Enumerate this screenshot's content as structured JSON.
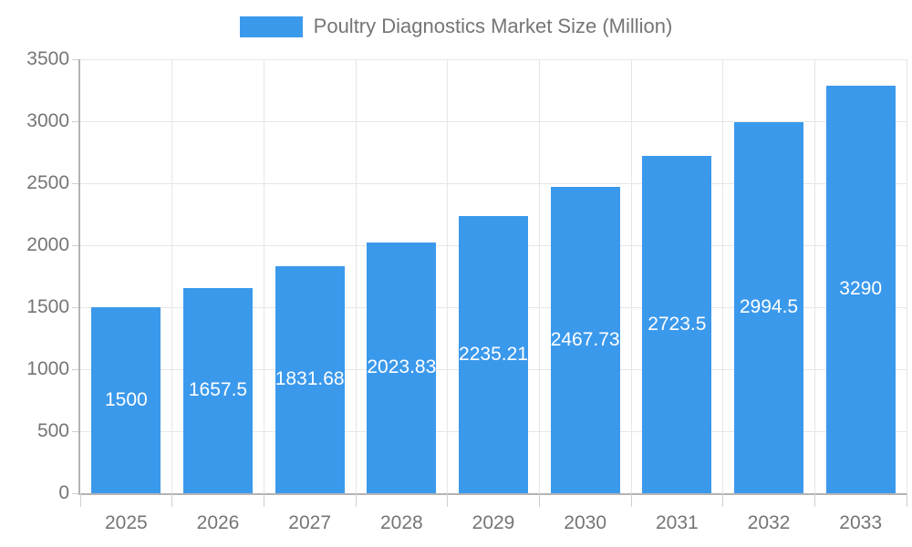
{
  "legend": {
    "items": [
      {
        "label": "Poultry Diagnostics Market Size (Million)",
        "color": "#3B99EC"
      }
    ]
  },
  "chart_data": {
    "type": "bar",
    "title": "Poultry Diagnostics Market Size (Million)",
    "categories": [
      "2025",
      "2026",
      "2027",
      "2028",
      "2029",
      "2030",
      "2031",
      "2032",
      "2033"
    ],
    "series": [
      {
        "name": "Poultry Diagnostics Market Size (Million)",
        "values": [
          1500,
          1657.5,
          1831.68,
          2023.83,
          2235.21,
          2467.73,
          2723.5,
          2994.5,
          3290
        ]
      }
    ],
    "bar_labels": [
      "1500",
      "1657.5",
      "1831.68",
      "2023.83",
      "2235.21",
      "2467.73",
      "2723.5",
      "2994.5",
      "3290"
    ],
    "xlabel": "",
    "ylabel": "",
    "ylim": [
      0,
      3500
    ],
    "yticks": [
      0,
      500,
      1000,
      1500,
      2000,
      2500,
      3000,
      3500
    ],
    "grid": true,
    "legend_position": "top",
    "colors": {
      "bar": "#3B99EC",
      "bar_label": "#FFFFFF",
      "axis_text": "#757575",
      "grid_line": "#E6E6E6",
      "axis_line": "#B3B3B3",
      "tick_mark": "#CFCFCF",
      "background": "#FFFFFF"
    }
  }
}
